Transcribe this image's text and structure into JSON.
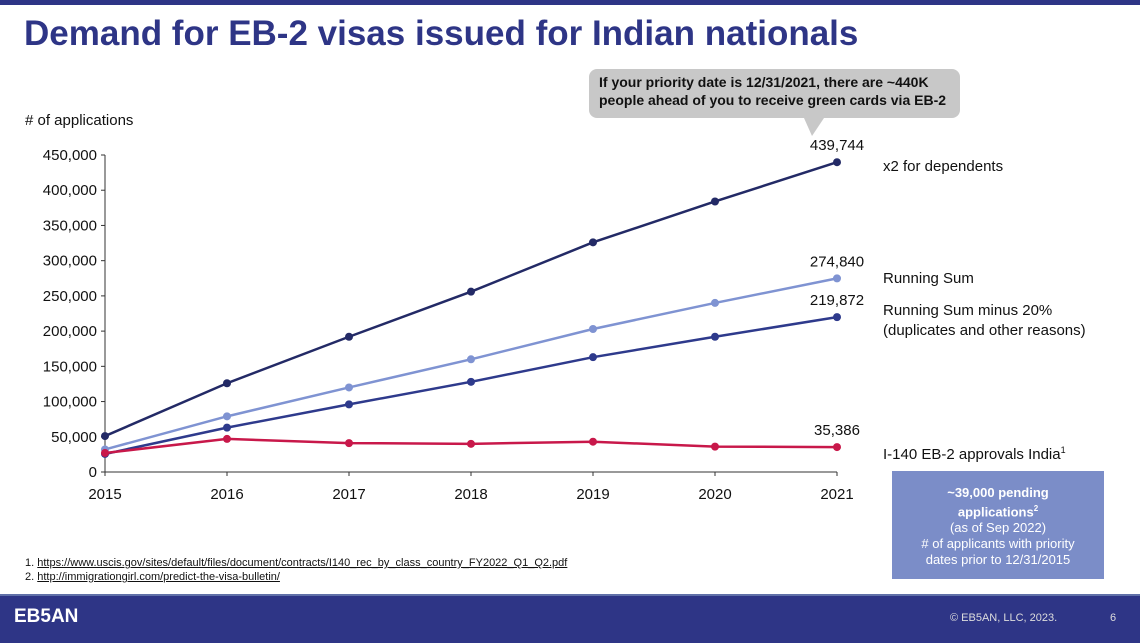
{
  "title": "Demand for EB-2 visas issued for Indian nationals",
  "callout": "If your priority date is 12/31/2021, there are ~440K people ahead of you to receive green cards via EB-2",
  "chart_data": {
    "type": "line",
    "ylabel": "# of applications",
    "ylim": [
      0,
      450000
    ],
    "yticks": [
      "0",
      "50,000",
      "100,000",
      "150,000",
      "200,000",
      "250,000",
      "300,000",
      "350,000",
      "400,000",
      "450,000"
    ],
    "categories": [
      "2015",
      "2016",
      "2017",
      "2018",
      "2019",
      "2020",
      "2021"
    ],
    "series": [
      {
        "name": "x2 for dependents",
        "color": "#232a66",
        "values": [
          51000,
          126000,
          192000,
          256000,
          326000,
          384000,
          439744
        ],
        "end_label": "439,744"
      },
      {
        "name": "Running Sum",
        "color": "#7f93d2",
        "values": [
          32000,
          79000,
          120000,
          160000,
          203000,
          240000,
          274840
        ],
        "end_label": "274,840"
      },
      {
        "name": "Running Sum minus 20% (duplicates and other reasons)",
        "color": "#2e3a8c",
        "values": [
          25600,
          63000,
          96000,
          128000,
          163000,
          192000,
          219872
        ],
        "end_label": "219,872"
      },
      {
        "name": "I-140 EB-2 approvals India",
        "color": "#c8184a",
        "values": [
          27000,
          47000,
          41000,
          40000,
          43000,
          36000,
          35386
        ],
        "end_label": "35,386"
      }
    ]
  },
  "legend": {
    "x2": "x2 for dependents",
    "rs": "Running Sum",
    "rs20a": "Running Sum minus 20%",
    "rs20b": "(duplicates and other reasons)",
    "i140": "I-140 EB-2 approvals India",
    "i140_sup": "1"
  },
  "box": {
    "l1": "~39,000 pending",
    "l2": "applications",
    "sup": "2",
    "l3": "(as of Sep 2022)",
    "l4": "# of applicants with priority",
    "l5": "dates prior to 12/31/2015"
  },
  "footnotes": [
    "1. ",
    "https://www.uscis.gov/sites/default/files/document/contracts/I140_rec_by_class_country_FY2022_Q1_Q2.pdf",
    "2. ",
    "http://immigrationgirl.com/predict-the-visa-bulletin/"
  ],
  "footer": {
    "logo": "EB5AN",
    "copyright": "© EB5AN, LLC, 2023.",
    "page": "6"
  }
}
